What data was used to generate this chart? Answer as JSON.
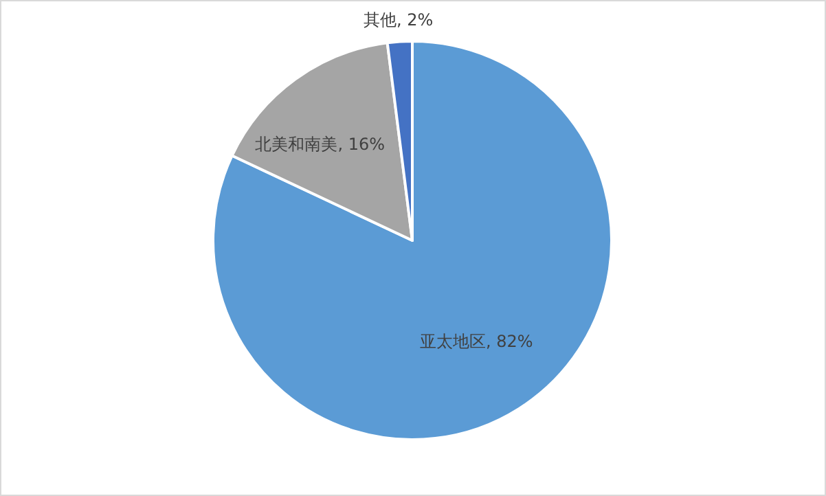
{
  "chart_data": {
    "type": "pie",
    "categories": [
      "亚太地区",
      "北美和南美",
      "其他"
    ],
    "values": [
      82,
      16,
      2
    ],
    "value_labels": [
      "82%",
      "16%",
      "2%"
    ],
    "colors": [
      "#5b9bd5",
      "#a5a5a5",
      "#4472c4"
    ],
    "legend": false
  }
}
